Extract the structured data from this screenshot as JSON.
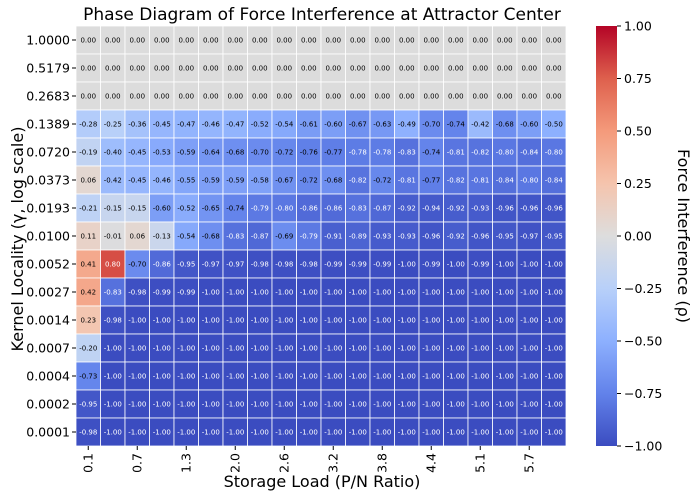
{
  "chart_data": {
    "type": "heatmap",
    "title": "Phase Diagram of Force Interference at Attractor Center",
    "xlabel": "Storage Load (P/N Ratio)",
    "ylabel": "Kernel Locality (γ, log scale)",
    "colorbar_label": "Force Interference (ρ)",
    "colormap": "coolwarm",
    "vmin": -1.0,
    "vmax": 1.0,
    "colorbar_ticks": [
      "1.00",
      "0.75",
      "0.50",
      "0.25",
      "0.00",
      "−0.25",
      "−0.50",
      "−0.75",
      "−1.00"
    ],
    "x_tick_labels": [
      "0.1",
      "0.7",
      "1.3",
      "2.0",
      "2.6",
      "3.2",
      "3.8",
      "4.4",
      "5.1",
      "5.7"
    ],
    "y_tick_labels": [
      "1.0000",
      "0.5179",
      "0.2683",
      "0.1389",
      "0.0720",
      "0.0373",
      "0.0193",
      "0.0100",
      "0.0052",
      "0.0027",
      "0.0014",
      "0.0007",
      "0.0004",
      "0.0002",
      "0.0001"
    ],
    "n_columns": 20,
    "grid": false,
    "rows": [
      [
        "0.00",
        "0.00",
        "0.00",
        "0.00",
        "0.00",
        "0.00",
        "0.00",
        "0.00",
        "0.00",
        "0.00",
        "0.00",
        "0.00",
        "0.00",
        "0.00",
        "0.00",
        "0.00",
        "0.00",
        "0.00",
        "0.00",
        "0.00"
      ],
      [
        "0.00",
        "0.00",
        "0.00",
        "0.00",
        "0.00",
        "0.00",
        "0.00",
        "0.00",
        "0.00",
        "0.00",
        "0.00",
        "0.00",
        "0.00",
        "0.00",
        "0.00",
        "0.00",
        "0.00",
        "0.00",
        "0.00",
        "0.00"
      ],
      [
        "0.00",
        "0.00",
        "0.00",
        "0.00",
        "0.00",
        "0.00",
        "0.00",
        "0.00",
        "0.00",
        "0.00",
        "0.00",
        "0.00",
        "0.00",
        "0.00",
        "0.00",
        "0.00",
        "0.00",
        "0.00",
        "0.00",
        "0.00"
      ],
      [
        "-0.28",
        "-0.25",
        "-0.36",
        "-0.45",
        "-0.47",
        "-0.46",
        "-0.47",
        "-0.52",
        "-0.54",
        "-0.61",
        "-0.60",
        "-0.67",
        "-0.63",
        "-0.49",
        "-0.70",
        "-0.74",
        "-0.42",
        "-0.68",
        "-0.60",
        "-0.50"
      ],
      [
        "-0.19",
        "-0.40",
        "-0.45",
        "-0.53",
        "-0.59",
        "-0.64",
        "-0.68",
        "-0.70",
        "-0.72",
        "-0.76",
        "-0.77",
        "-0.78",
        "-0.78",
        "-0.83",
        "-0.74",
        "-0.81",
        "-0.82",
        "-0.80",
        "-0.84",
        "-0.80"
      ],
      [
        "0.06",
        "-0.42",
        "-0.45",
        "-0.46",
        "-0.55",
        "-0.59",
        "-0.59",
        "-0.58",
        "-0.67",
        "-0.72",
        "-0.68",
        "-0.82",
        "-0.72",
        "-0.81",
        "-0.77",
        "-0.82",
        "-0.81",
        "-0.84",
        "-0.80",
        "-0.84"
      ],
      [
        "-0.21",
        "-0.15",
        "-0.15",
        "-0.60",
        "-0.52",
        "-0.65",
        "-0.74",
        "-0.79",
        "-0.80",
        "-0.86",
        "-0.86",
        "-0.83",
        "-0.87",
        "-0.92",
        "-0.94",
        "-0.92",
        "-0.93",
        "-0.96",
        "-0.96",
        "-0.96"
      ],
      [
        "0.11",
        "-0.01",
        "0.06",
        "-0.13",
        "-0.54",
        "-0.68",
        "-0.83",
        "-0.87",
        "-0.69",
        "-0.79",
        "-0.91",
        "-0.89",
        "-0.93",
        "-0.93",
        "-0.96",
        "-0.92",
        "-0.96",
        "-0.95",
        "-0.97",
        "-0.95"
      ],
      [
        "0.41",
        "0.80",
        "-0.70",
        "-0.86",
        "-0.95",
        "-0.97",
        "-0.97",
        "-0.98",
        "-0.98",
        "-0.98",
        "-0.99",
        "-0.99",
        "-0.99",
        "-1.00",
        "-0.99",
        "-1.00",
        "-0.99",
        "-1.00",
        "-1.00",
        "-1.00"
      ],
      [
        "0.42",
        "-0.83",
        "-0.98",
        "-0.99",
        "-0.99",
        "-1.00",
        "-1.00",
        "-1.00",
        "-1.00",
        "-1.00",
        "-1.00",
        "-1.00",
        "-1.00",
        "-1.00",
        "-1.00",
        "-1.00",
        "-1.00",
        "-1.00",
        "-1.00",
        "-1.00"
      ],
      [
        "0.23",
        "-0.98",
        "-1.00",
        "-1.00",
        "-1.00",
        "-1.00",
        "-1.00",
        "-1.00",
        "-1.00",
        "-1.00",
        "-1.00",
        "-1.00",
        "-1.00",
        "-1.00",
        "-1.00",
        "-1.00",
        "-1.00",
        "-1.00",
        "-1.00",
        "-1.00"
      ],
      [
        "-0.20",
        "-1.00",
        "-1.00",
        "-1.00",
        "-1.00",
        "-1.00",
        "-1.00",
        "-1.00",
        "-1.00",
        "-1.00",
        "-1.00",
        "-1.00",
        "-1.00",
        "-1.00",
        "-1.00",
        "-1.00",
        "-1.00",
        "-1.00",
        "-1.00",
        "-1.00"
      ],
      [
        "-0.73",
        "-1.00",
        "-1.00",
        "-1.00",
        "-1.00",
        "-1.00",
        "-1.00",
        "-1.00",
        "-1.00",
        "-1.00",
        "-1.00",
        "-1.00",
        "-1.00",
        "-1.00",
        "-1.00",
        "-1.00",
        "-1.00",
        "-1.00",
        "-1.00",
        "-1.00"
      ],
      [
        "-0.95",
        "-1.00",
        "-1.00",
        "-1.00",
        "-1.00",
        "-1.00",
        "-1.00",
        "-1.00",
        "-1.00",
        "-1.00",
        "-1.00",
        "-1.00",
        "-1.00",
        "-1.00",
        "-1.00",
        "-1.00",
        "-1.00",
        "-1.00",
        "-1.00",
        "-1.00"
      ],
      [
        "-0.98",
        "-1.00",
        "-1.00",
        "-1.00",
        "-1.00",
        "-1.00",
        "-1.00",
        "-1.00",
        "-1.00",
        "-1.00",
        "-1.00",
        "-1.00",
        "-1.00",
        "-1.00",
        "-1.00",
        "-1.00",
        "-1.00",
        "-1.00",
        "-1.00",
        "-1.00"
      ]
    ],
    "colors": {
      "nan_cell": "#dcdcdc",
      "cell_border": "#ffffff",
      "text": "#000000",
      "annotation_light": "#ffffff",
      "annotation_dark": "#000000"
    }
  }
}
